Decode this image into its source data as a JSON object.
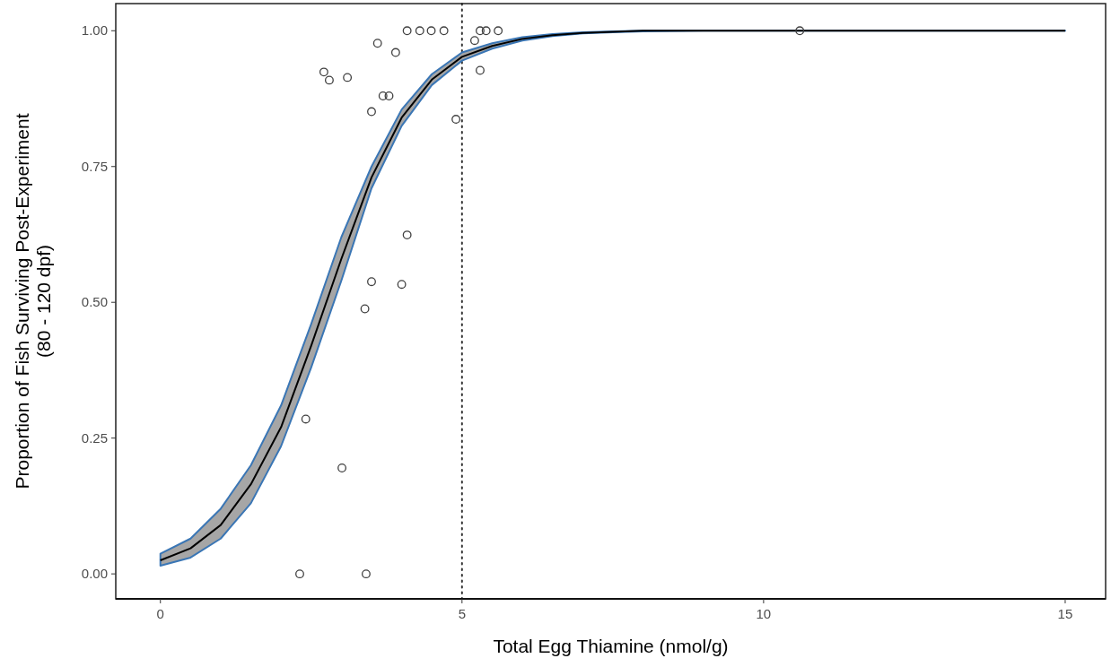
{
  "chart_data": {
    "type": "scatter",
    "xlabel": "Total Egg Thiamine (nmol/g)",
    "ylabel": "Proportion of Fish Surviving Post-Experiment\n(80 - 120 dpf)",
    "xlim": [
      -0.74,
      15.67
    ],
    "xticks": [
      0,
      5,
      10,
      15
    ],
    "ylim": [
      -0.046,
      1.05
    ],
    "yticks": [
      {
        "value": 0,
        "label": "0.00"
      },
      {
        "value": 0.25,
        "label": "0.25"
      },
      {
        "value": 0.5,
        "label": "0.50"
      },
      {
        "value": 0.75,
        "label": "0.75"
      },
      {
        "value": 1,
        "label": "1.00"
      }
    ],
    "grid": false,
    "ref_lines": [
      {
        "axis": "x",
        "value": 5,
        "line_style": "dotted",
        "color": "#333333"
      }
    ],
    "series": [
      {
        "type": "line",
        "color": "#000000",
        "x": [
          0,
          0.5,
          1,
          1.5,
          2,
          2.5,
          3,
          3.5,
          4,
          4.5,
          5,
          5.5,
          6,
          6.5,
          7,
          7.5,
          8,
          9,
          10,
          11,
          12,
          13,
          14,
          15
        ],
        "values": [
          0.025,
          0.047,
          0.09,
          0.165,
          0.27,
          0.42,
          0.58,
          0.73,
          0.84,
          0.91,
          0.952,
          0.972,
          0.985,
          0.992,
          0.996,
          0.998,
          1,
          1,
          1,
          1,
          1,
          1,
          1,
          1
        ],
        "lower": [
          0.015,
          0.03,
          0.065,
          0.13,
          0.235,
          0.38,
          0.54,
          0.71,
          0.825,
          0.9,
          0.945,
          0.967,
          0.982,
          0.99,
          0.995,
          0.997,
          0.999,
          1,
          1,
          1,
          1,
          1,
          1,
          1
        ],
        "upper": [
          0.037,
          0.065,
          0.12,
          0.2,
          0.31,
          0.46,
          0.62,
          0.75,
          0.855,
          0.92,
          0.96,
          0.977,
          0.988,
          0.994,
          0.997,
          0.999,
          1,
          1,
          1,
          1,
          1,
          1,
          1,
          1
        ]
      },
      {
        "type": "scatter",
        "color": "#404040",
        "marker": "circle",
        "x": [
          2.31,
          3.41,
          2.41,
          3.01,
          3.39,
          3.5,
          4.0,
          4.09,
          2.71,
          2.8,
          3.1,
          3.5,
          3.69,
          3.79,
          3.6,
          3.9,
          4.9,
          5.21,
          5.3,
          4.09,
          4.3,
          4.49,
          4.7,
          5.3,
          5.4,
          5.6,
          10.6
        ],
        "values": [
          0,
          0,
          0.285,
          0.195,
          0.488,
          0.538,
          0.533,
          0.624,
          0.924,
          0.909,
          0.914,
          0.851,
          0.88,
          0.88,
          0.977,
          0.96,
          0.837,
          0.982,
          0.927,
          1,
          1,
          1,
          1,
          1,
          1,
          1,
          1
        ]
      }
    ]
  }
}
